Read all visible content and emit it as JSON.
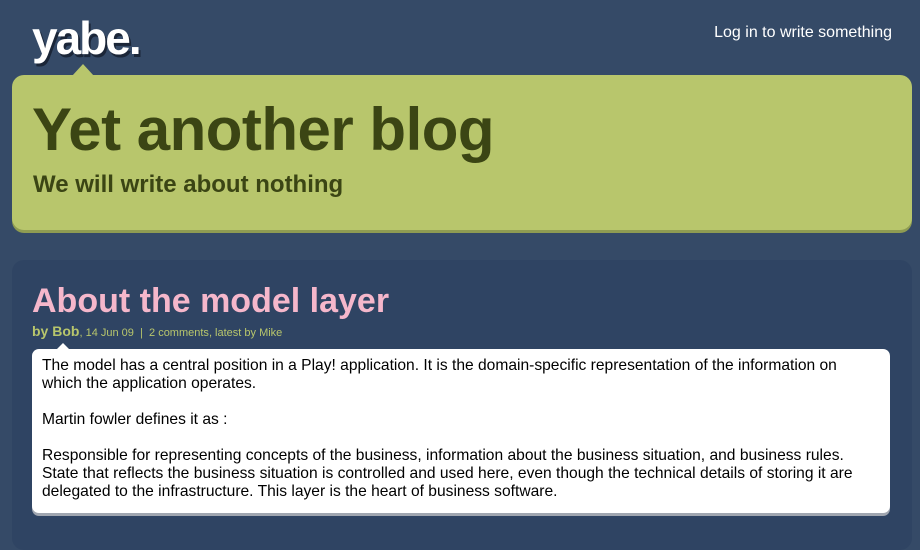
{
  "site": {
    "logo": "yabe.",
    "login_link": "Log in to write something"
  },
  "header": {
    "title": "Yet another blog",
    "subtitle": "We will write about nothing"
  },
  "post": {
    "title": "About the model layer",
    "author": "by Bob",
    "date": "14 Jun 09",
    "separator": "|",
    "comments": "2 comments",
    "latest_by": ", latest by Mike",
    "paragraphs": [
      "The model has a central position in a Play! application. It is the domain-specific representation of the information on which the application operates.",
      "Martin fowler defines it as :",
      "Responsible for representing concepts of the business, information about the business situation, and business rules. State that reflects the business situation is controlled and used here, even though the technical details of storing it are delegated to the infrastructure. This layer is the heart of business software."
    ]
  },
  "colors": {
    "page_background": "#354a67",
    "header_background": "#b8c66c",
    "header_text": "#3b4514",
    "post_title": "#f5b7cb",
    "meta_text": "#b8c66c",
    "post_background": "#2f4463"
  }
}
